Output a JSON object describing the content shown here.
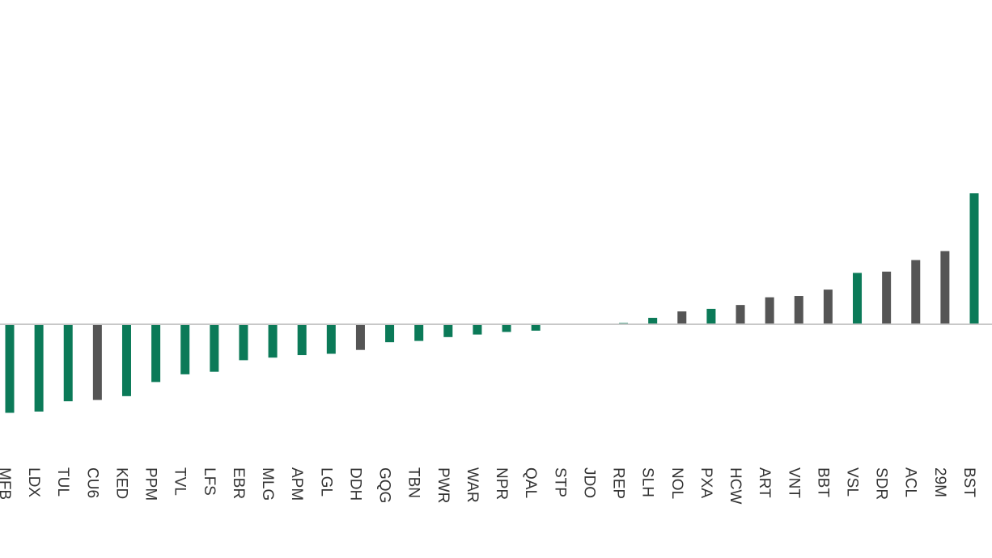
{
  "chart_data": {
    "type": "bar",
    "title": "",
    "xlabel": "",
    "ylabel": "",
    "ylim": [
      -7.5,
      24
    ],
    "grid": false,
    "legend": "none",
    "colors": {
      "green": "#0b7a58",
      "gray": "#555555",
      "baseline": "#c8c8c8"
    },
    "categories": [
      "MFB",
      "LDX",
      "TUL",
      "CU6",
      "KED",
      "PPM",
      "TVL",
      "LFS",
      "EBR",
      "MLG",
      "APM",
      "LGL",
      "DDH",
      "GQG",
      "TBN",
      "PWR",
      "WAR",
      "NPR",
      "QAL",
      "STP",
      "JDO",
      "REP",
      "SLH",
      "NOL",
      "PXA",
      "HCW",
      "ART",
      "VNT",
      "BBT",
      "VSL",
      "SDR",
      "ACL",
      "29M",
      "BST"
    ],
    "values": [
      -6.9,
      -6.8,
      -6.0,
      -5.9,
      -5.6,
      -4.5,
      -3.9,
      -3.7,
      -2.8,
      -2.6,
      -2.4,
      -2.3,
      -2.0,
      -1.4,
      -1.3,
      -1.0,
      -0.8,
      -0.6,
      -0.5,
      0,
      0,
      0.1,
      0.5,
      1.0,
      1.2,
      1.5,
      2.1,
      2.2,
      2.7,
      4.0,
      4.1,
      5.0,
      5.7,
      10.2
    ],
    "bar_colors": [
      "green",
      "green",
      "green",
      "gray",
      "green",
      "green",
      "green",
      "green",
      "green",
      "green",
      "green",
      "green",
      "gray",
      "green",
      "green",
      "green",
      "green",
      "green",
      "green",
      "green",
      "green",
      "green",
      "green",
      "gray",
      "green",
      "gray",
      "gray",
      "gray",
      "gray",
      "green",
      "gray",
      "gray",
      "gray",
      "green"
    ]
  }
}
